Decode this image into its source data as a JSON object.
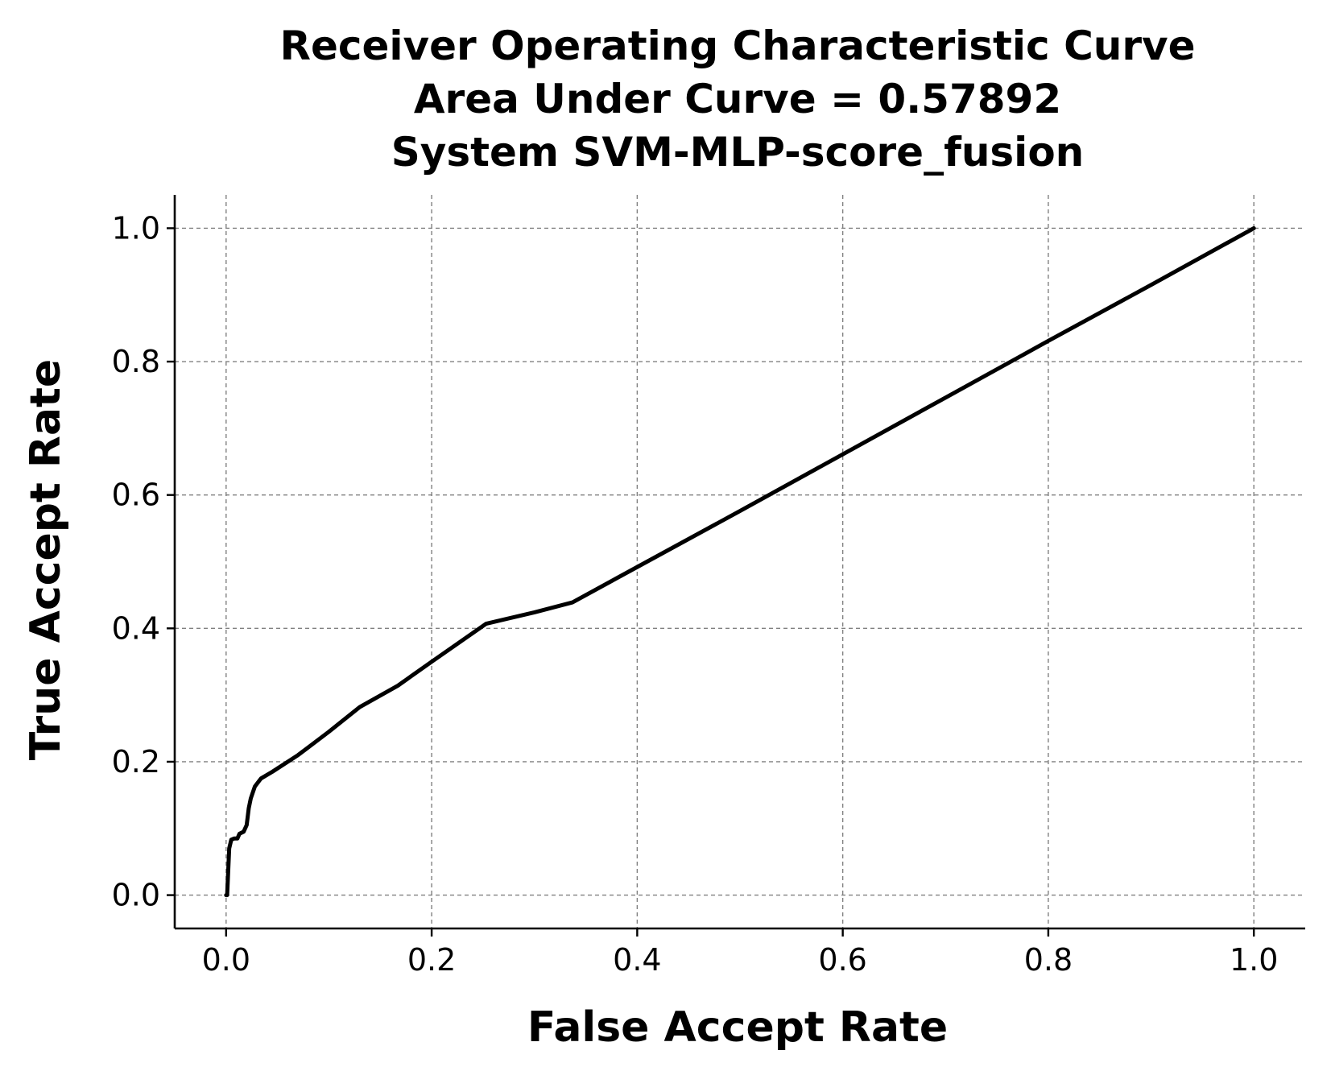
{
  "chart_data": {
    "type": "line",
    "title_lines": [
      "Receiver Operating Characteristic Curve",
      "Area Under Curve = 0.57892",
      "System SVM-MLP-score_fusion"
    ],
    "xlabel": "False Accept Rate",
    "ylabel": "True Accept Rate",
    "xlim": [
      -0.05,
      1.05
    ],
    "ylim": [
      -0.05,
      1.05
    ],
    "xticks": [
      0.0,
      0.2,
      0.4,
      0.6,
      0.8,
      1.0
    ],
    "yticks": [
      0.0,
      0.2,
      0.4,
      0.6,
      0.8,
      1.0
    ],
    "xtick_labels": [
      "0.0",
      "0.2",
      "0.4",
      "0.6",
      "0.8",
      "1.0"
    ],
    "ytick_labels": [
      "0.0",
      "0.2",
      "0.4",
      "0.6",
      "0.8",
      "1.0"
    ],
    "grid": true,
    "series": [
      {
        "color": "#000000",
        "x": [
          0.0,
          0.001,
          0.002,
          0.003,
          0.005,
          0.008,
          0.011,
          0.013,
          0.017,
          0.02,
          0.022,
          0.024,
          0.028,
          0.034,
          0.045,
          0.07,
          0.1,
          0.13,
          0.167,
          0.2,
          0.253,
          0.3,
          0.337,
          0.4,
          0.5,
          0.6,
          0.7,
          0.8,
          0.9,
          1.0
        ],
        "y": [
          0.0,
          0.0,
          0.035,
          0.07,
          0.083,
          0.085,
          0.085,
          0.092,
          0.095,
          0.105,
          0.13,
          0.145,
          0.163,
          0.175,
          0.185,
          0.21,
          0.245,
          0.282,
          0.314,
          0.35,
          0.407,
          0.424,
          0.439,
          0.492,
          0.576,
          0.661,
          0.746,
          0.831,
          0.915,
          1.0
        ]
      }
    ]
  }
}
